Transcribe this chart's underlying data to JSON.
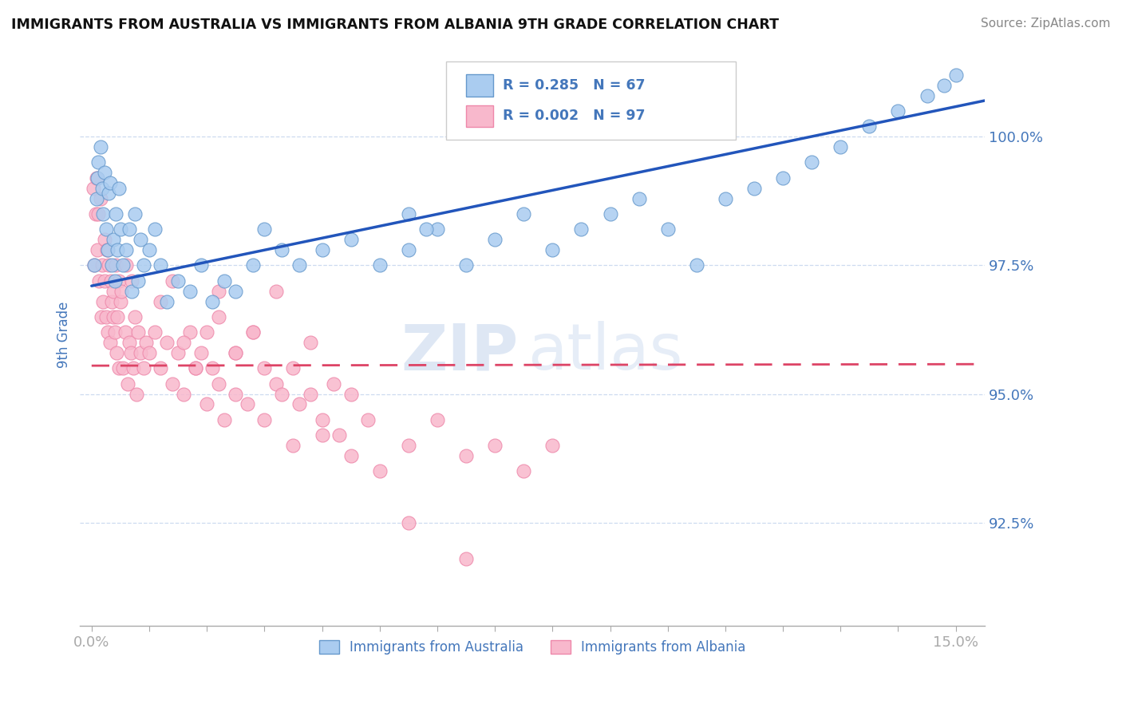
{
  "title": "IMMIGRANTS FROM AUSTRALIA VS IMMIGRANTS FROM ALBANIA 9TH GRADE CORRELATION CHART",
  "source_text": "Source: ZipAtlas.com",
  "ylabel": "9th Grade",
  "y_ticks": [
    92.5,
    95.0,
    97.5,
    100.0
  ],
  "y_tick_labels": [
    "92.5%",
    "95.0%",
    "97.5%",
    "100.0%"
  ],
  "xlim": [
    -0.2,
    15.5
  ],
  "ylim": [
    90.5,
    101.8
  ],
  "australia_color": "#aaccf0",
  "albania_color": "#f8b8cc",
  "australia_edge": "#6699cc",
  "albania_edge": "#ee88aa",
  "trend_australia_color": "#2255bb",
  "trend_albania_color": "#dd4466",
  "R_australia": 0.285,
  "N_australia": 67,
  "R_albania": 0.002,
  "N_albania": 97,
  "legend_label_australia": "Immigrants from Australia",
  "legend_label_albania": "Immigrants from Albania",
  "watermark_zip": "ZIP",
  "watermark_atlas": "atlas",
  "background_color": "#ffffff",
  "grid_color": "#c8d8ee",
  "title_color": "#111111",
  "axis_label_color": "#4477bb",
  "tick_color": "#4477bb",
  "au_trend_x0": 0.0,
  "au_trend_y0": 97.1,
  "au_trend_x1": 15.5,
  "au_trend_y1": 100.7,
  "al_trend_x0": 0.0,
  "al_trend_y0": 95.55,
  "al_trend_x1": 15.5,
  "al_trend_y1": 95.58,
  "australia_x": [
    0.05,
    0.08,
    0.1,
    0.12,
    0.15,
    0.18,
    0.2,
    0.22,
    0.25,
    0.28,
    0.3,
    0.32,
    0.35,
    0.38,
    0.4,
    0.42,
    0.45,
    0.48,
    0.5,
    0.55,
    0.6,
    0.65,
    0.7,
    0.75,
    0.8,
    0.85,
    0.9,
    1.0,
    1.1,
    1.2,
    1.3,
    1.5,
    1.7,
    1.9,
    2.1,
    2.3,
    2.5,
    2.8,
    3.0,
    3.3,
    3.6,
    4.0,
    4.5,
    5.0,
    5.5,
    6.0,
    6.5,
    7.0,
    7.5,
    8.0,
    8.5,
    9.0,
    9.5,
    10.0,
    10.5,
    11.0,
    11.5,
    12.0,
    12.5,
    13.0,
    13.5,
    14.0,
    14.5,
    14.8,
    15.0,
    5.5,
    5.8
  ],
  "australia_y": [
    97.5,
    98.8,
    99.2,
    99.5,
    99.8,
    99.0,
    98.5,
    99.3,
    98.2,
    97.8,
    98.9,
    99.1,
    97.5,
    98.0,
    97.2,
    98.5,
    97.8,
    99.0,
    98.2,
    97.5,
    97.8,
    98.2,
    97.0,
    98.5,
    97.2,
    98.0,
    97.5,
    97.8,
    98.2,
    97.5,
    96.8,
    97.2,
    97.0,
    97.5,
    96.8,
    97.2,
    97.0,
    97.5,
    98.2,
    97.8,
    97.5,
    97.8,
    98.0,
    97.5,
    97.8,
    98.2,
    97.5,
    98.0,
    98.5,
    97.8,
    98.2,
    98.5,
    98.8,
    98.2,
    97.5,
    98.8,
    99.0,
    99.2,
    99.5,
    99.8,
    100.2,
    100.5,
    100.8,
    101.0,
    101.2,
    98.5,
    98.2
  ],
  "albania_x": [
    0.03,
    0.05,
    0.07,
    0.08,
    0.1,
    0.12,
    0.13,
    0.15,
    0.17,
    0.18,
    0.2,
    0.22,
    0.23,
    0.25,
    0.27,
    0.28,
    0.3,
    0.32,
    0.33,
    0.35,
    0.37,
    0.38,
    0.4,
    0.42,
    0.43,
    0.45,
    0.47,
    0.48,
    0.5,
    0.52,
    0.55,
    0.58,
    0.6,
    0.63,
    0.65,
    0.68,
    0.7,
    0.73,
    0.75,
    0.78,
    0.8,
    0.85,
    0.9,
    0.95,
    1.0,
    1.1,
    1.2,
    1.3,
    1.4,
    1.5,
    1.6,
    1.7,
    1.8,
    1.9,
    2.0,
    2.1,
    2.2,
    2.3,
    2.5,
    2.7,
    3.0,
    3.2,
    3.5,
    3.8,
    4.0,
    4.3,
    4.5,
    4.8,
    5.0,
    5.5,
    6.0,
    6.5,
    7.0,
    7.5,
    8.0,
    2.2,
    2.5,
    2.8,
    3.0,
    3.3,
    3.6,
    4.0,
    4.5,
    5.5,
    6.5,
    1.2,
    1.4,
    1.6,
    1.8,
    2.0,
    2.2,
    2.5,
    2.8,
    3.2,
    3.5,
    3.8,
    4.2
  ],
  "albania_y": [
    99.0,
    97.5,
    98.5,
    99.2,
    97.8,
    98.5,
    97.2,
    98.8,
    96.5,
    97.5,
    96.8,
    97.2,
    98.0,
    96.5,
    97.8,
    96.2,
    97.5,
    96.0,
    97.2,
    96.8,
    97.0,
    96.5,
    96.2,
    97.5,
    95.8,
    96.5,
    97.2,
    95.5,
    96.8,
    97.0,
    95.5,
    96.2,
    97.5,
    95.2,
    96.0,
    95.8,
    97.2,
    95.5,
    96.5,
    95.0,
    96.2,
    95.8,
    95.5,
    96.0,
    95.8,
    96.2,
    95.5,
    96.0,
    95.2,
    95.8,
    95.0,
    96.2,
    95.5,
    95.8,
    94.8,
    95.5,
    95.2,
    94.5,
    95.0,
    94.8,
    94.5,
    95.2,
    94.0,
    95.0,
    94.5,
    94.2,
    95.0,
    94.5,
    93.5,
    94.0,
    94.5,
    93.8,
    94.0,
    93.5,
    94.0,
    96.5,
    95.8,
    96.2,
    95.5,
    95.0,
    94.8,
    94.2,
    93.8,
    92.5,
    91.8,
    96.8,
    97.2,
    96.0,
    95.5,
    96.2,
    97.0,
    95.8,
    96.2,
    97.0,
    95.5,
    96.0,
    95.2
  ]
}
